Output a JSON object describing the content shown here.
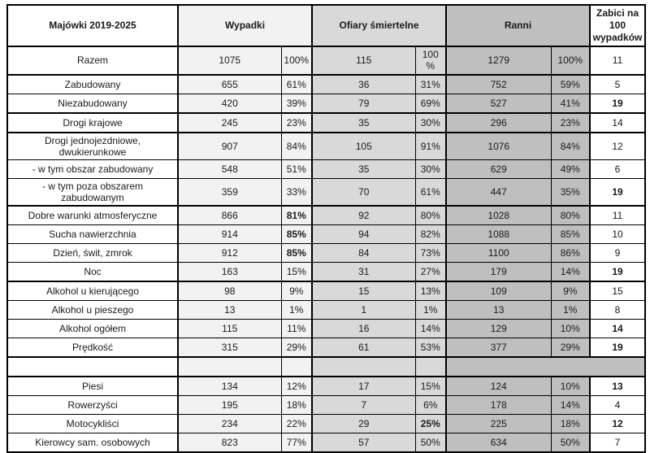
{
  "table": {
    "header": {
      "title": "Majówki 2019-2025",
      "wypadki": "Wypadki",
      "ofiary": "Ofiary śmiertelne",
      "ranni": "Ranni",
      "zabici": "Zabici na 100 wypadków"
    },
    "colors": {
      "label_bg": "#ffffff",
      "wypadki_bg": "#f2f2f2",
      "ofiary_bg": "#d9d9d9",
      "ranni_bg": "#bfbfbf",
      "zabici_bg": "#ffffff",
      "border": "#000000"
    },
    "rows": [
      {
        "label": "Razem",
        "wn": "1075",
        "wp": "100%",
        "on": "115",
        "op": "100\n%",
        "rn": "1279",
        "rp": "100%",
        "z": "11",
        "bold": [],
        "thick": true
      },
      {
        "label": "Zabudowany",
        "wn": "655",
        "wp": "61%",
        "on": "36",
        "op": "31%",
        "rn": "752",
        "rp": "59%",
        "z": "5",
        "bold": []
      },
      {
        "label": "Niezabudowany",
        "wn": "420",
        "wp": "39%",
        "on": "79",
        "op": "69%",
        "rn": "527",
        "rp": "41%",
        "z": "19",
        "bold": [
          "z"
        ],
        "thick": true
      },
      {
        "label": "Drogi krajowe",
        "wn": "245",
        "wp": "23%",
        "on": "35",
        "op": "30%",
        "rn": "296",
        "rp": "23%",
        "z": "14",
        "bold": [],
        "thick": true
      },
      {
        "label": "Drogi jednojezdniowe, dwukierunkowe",
        "wn": "907",
        "wp": "84%",
        "on": "105",
        "op": "91%",
        "rn": "1076",
        "rp": "84%",
        "z": "12",
        "bold": []
      },
      {
        "label": "- w tym obszar zabudowany",
        "wn": "548",
        "wp": "51%",
        "on": "35",
        "op": "30%",
        "rn": "629",
        "rp": "49%",
        "z": "6",
        "bold": []
      },
      {
        "label": "- w tym poza obszarem zabudowanym",
        "wn": "359",
        "wp": "33%",
        "on": "70",
        "op": "61%",
        "rn": "447",
        "rp": "35%",
        "z": "19",
        "bold": [
          "z"
        ],
        "thick": true
      },
      {
        "label": "Dobre warunki atmosferyczne",
        "wn": "866",
        "wp": "81%",
        "on": "92",
        "op": "80%",
        "rn": "1028",
        "rp": "80%",
        "z": "11",
        "bold": [
          "wp"
        ]
      },
      {
        "label": "Sucha nawierzchnia",
        "wn": "914",
        "wp": "85%",
        "on": "94",
        "op": "82%",
        "rn": "1088",
        "rp": "85%",
        "z": "10",
        "bold": [
          "wp"
        ]
      },
      {
        "label": "Dzień, świt, zmrok",
        "wn": "912",
        "wp": "85%",
        "on": "84",
        "op": "73%",
        "rn": "1100",
        "rp": "86%",
        "z": "9",
        "bold": [
          "wp"
        ]
      },
      {
        "label": "Noc",
        "wn": "163",
        "wp": "15%",
        "on": "31",
        "op": "27%",
        "rn": "179",
        "rp": "14%",
        "z": "19",
        "bold": [
          "z"
        ],
        "thick": true
      },
      {
        "label": "Alkohol u kierującego",
        "wn": "98",
        "wp": "9%",
        "on": "15",
        "op": "13%",
        "rn": "109",
        "rp": "9%",
        "z": "15",
        "bold": []
      },
      {
        "label": "Alkohol u pieszego",
        "wn": "13",
        "wp": "1%",
        "on": "1",
        "op": "1%",
        "rn": "13",
        "rp": "1%",
        "z": "8",
        "bold": []
      },
      {
        "label": "Alkohol ogółem",
        "wn": "115",
        "wp": "11%",
        "on": "16",
        "op": "14%",
        "rn": "129",
        "rp": "10%",
        "z": "14",
        "bold": [
          "z"
        ]
      },
      {
        "label": "Prędkość",
        "wn": "315",
        "wp": "29%",
        "on": "61",
        "op": "53%",
        "rn": "377",
        "rp": "29%",
        "z": "19",
        "bold": [
          "z"
        ],
        "thick": true
      },
      {
        "empty": true,
        "thick": true
      },
      {
        "label": "Piesi",
        "wn": "134",
        "wp": "12%",
        "on": "17",
        "op": "15%",
        "rn": "124",
        "rp": "10%",
        "z": "13",
        "bold": [
          "z"
        ]
      },
      {
        "label": "Rowerzyści",
        "wn": "195",
        "wp": "18%",
        "on": "7",
        "op": "6%",
        "rn": "178",
        "rp": "14%",
        "z": "4",
        "bold": []
      },
      {
        "label": "Motocykliści",
        "wn": "234",
        "wp": "22%",
        "on": "29",
        "op": "25%",
        "rn": "225",
        "rp": "18%",
        "z": "12",
        "bold": [
          "op",
          "z"
        ]
      },
      {
        "label": "Kierowcy sam. osobowych",
        "wn": "823",
        "wp": "77%",
        "on": "57",
        "op": "50%",
        "rn": "634",
        "rp": "50%",
        "z": "7",
        "bold": []
      }
    ]
  }
}
